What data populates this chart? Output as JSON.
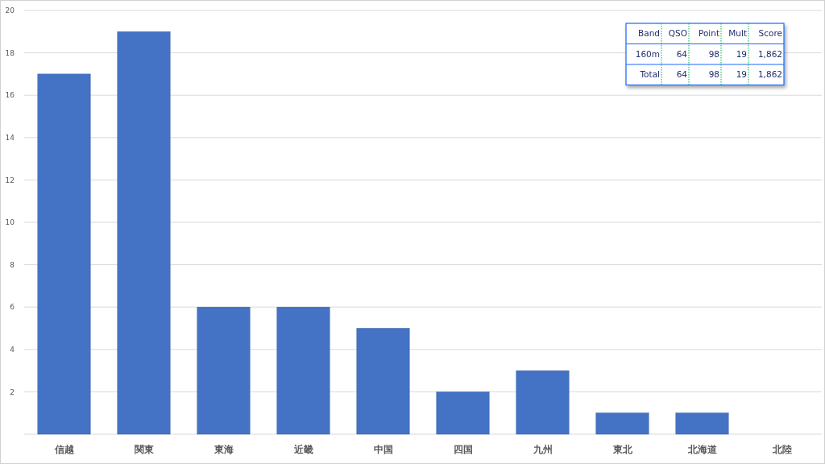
{
  "chart_data": {
    "type": "bar",
    "categories": [
      "信越",
      "関東",
      "東海",
      "近畿",
      "中国",
      "四国",
      "九州",
      "東北",
      "北海道",
      "北陸"
    ],
    "values": [
      17,
      19,
      6,
      6,
      5,
      2,
      3,
      1,
      1,
      0
    ],
    "color": "#4472c4",
    "ylim": [
      0,
      20
    ],
    "yticks": [
      {
        "value": 0,
        "label": null
      },
      2,
      4,
      6,
      8,
      10,
      12,
      14,
      16,
      18,
      20
    ],
    "grid": "y",
    "annotations": [
      "Band",
      "QSO",
      "Point",
      "Mult",
      "Score",
      "160m",
      "64",
      "98",
      "19",
      "1,862",
      "Total",
      "64",
      "98",
      "19",
      "1,862"
    ]
  }
}
